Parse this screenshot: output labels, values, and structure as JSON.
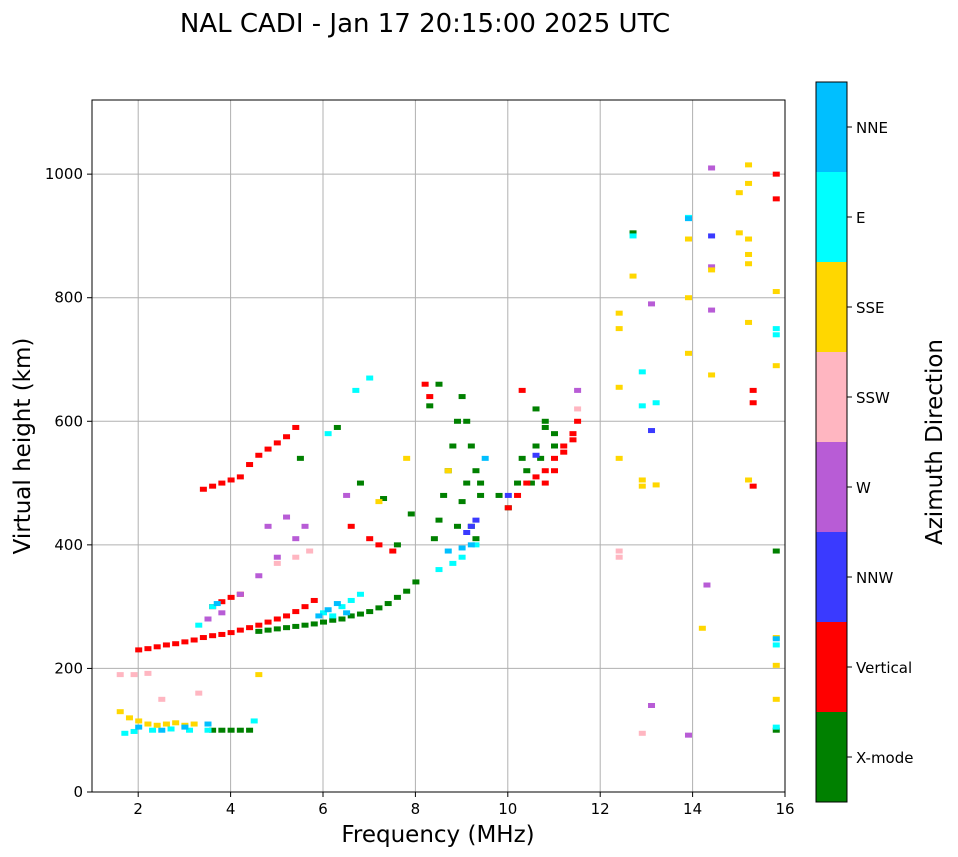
{
  "chart_data": {
    "type": "scatter",
    "title": "NAL CADI - Jan 17 20:15:00 2025 UTC",
    "xlabel": "Frequency (MHz)",
    "ylabel": "Virtual height (km)",
    "xlim": [
      1,
      16
    ],
    "ylim": [
      0,
      1120
    ],
    "xticks": [
      2,
      4,
      6,
      8,
      10,
      12,
      14,
      16
    ],
    "yticks": [
      0,
      200,
      400,
      600,
      800,
      1000
    ],
    "grid": true,
    "colorbar": {
      "label": "Azimuth Direction",
      "categories": [
        {
          "name": "X-mode",
          "color": "#008000"
        },
        {
          "name": "Vertical",
          "color": "#ff0000"
        },
        {
          "name": "NNW",
          "color": "#3a3aff"
        },
        {
          "name": "W",
          "color": "#b85cd6"
        },
        {
          "name": "SSW",
          "color": "#ffb6c1"
        },
        {
          "name": "SSE",
          "color": "#ffd700"
        },
        {
          "name": "E",
          "color": "#00ffff"
        },
        {
          "name": "NNE",
          "color": "#00bfff"
        }
      ]
    },
    "series": [
      {
        "name": "X-mode",
        "points": [
          [
            3.6,
            100
          ],
          [
            3.8,
            100
          ],
          [
            4.0,
            100
          ],
          [
            4.2,
            100
          ],
          [
            4.4,
            100
          ],
          [
            4.6,
            260
          ],
          [
            4.8,
            262
          ],
          [
            5.0,
            264
          ],
          [
            5.2,
            266
          ],
          [
            5.4,
            268
          ],
          [
            5.6,
            270
          ],
          [
            5.8,
            272
          ],
          [
            6.0,
            275
          ],
          [
            6.2,
            278
          ],
          [
            6.4,
            280
          ],
          [
            6.6,
            285
          ],
          [
            6.8,
            288
          ],
          [
            7.0,
            292
          ],
          [
            7.2,
            298
          ],
          [
            7.4,
            305
          ],
          [
            7.6,
            315
          ],
          [
            7.8,
            325
          ],
          [
            8.0,
            340
          ],
          [
            5.5,
            540
          ],
          [
            6.3,
            590
          ],
          [
            6.8,
            500
          ],
          [
            7.3,
            475
          ],
          [
            7.6,
            400
          ],
          [
            7.9,
            450
          ],
          [
            8.4,
            410
          ],
          [
            8.5,
            440
          ],
          [
            8.6,
            480
          ],
          [
            8.7,
            520
          ],
          [
            8.8,
            560
          ],
          [
            8.9,
            600
          ],
          [
            9.0,
            640
          ],
          [
            9.1,
            600
          ],
          [
            9.2,
            560
          ],
          [
            9.3,
            520
          ],
          [
            9.4,
            480
          ],
          [
            8.3,
            625
          ],
          [
            8.5,
            660
          ],
          [
            8.9,
            430
          ],
          [
            9.0,
            470
          ],
          [
            9.1,
            500
          ],
          [
            9.2,
            430
          ],
          [
            9.3,
            410
          ],
          [
            9.4,
            500
          ],
          [
            9.8,
            480
          ],
          [
            10.0,
            460
          ],
          [
            10.2,
            500
          ],
          [
            10.4,
            520
          ],
          [
            10.6,
            560
          ],
          [
            10.8,
            590
          ],
          [
            10.6,
            620
          ],
          [
            10.8,
            600
          ],
          [
            11.0,
            580
          ],
          [
            10.5,
            500
          ],
          [
            10.7,
            540
          ],
          [
            11.0,
            560
          ],
          [
            10.3,
            540
          ],
          [
            12.7,
            905
          ],
          [
            15.8,
            390
          ],
          [
            15.8,
            100
          ]
        ]
      },
      {
        "name": "Vertical",
        "points": [
          [
            2.0,
            230
          ],
          [
            2.2,
            232
          ],
          [
            2.4,
            235
          ],
          [
            2.6,
            238
          ],
          [
            2.8,
            240
          ],
          [
            3.0,
            243
          ],
          [
            3.2,
            246
          ],
          [
            3.4,
            250
          ],
          [
            3.6,
            253
          ],
          [
            3.8,
            255
          ],
          [
            4.0,
            258
          ],
          [
            4.2,
            262
          ],
          [
            4.4,
            266
          ],
          [
            4.6,
            270
          ],
          [
            4.8,
            275
          ],
          [
            5.0,
            280
          ],
          [
            5.2,
            285
          ],
          [
            5.4,
            292
          ],
          [
            5.6,
            300
          ],
          [
            5.8,
            310
          ],
          [
            3.4,
            490
          ],
          [
            3.6,
            495
          ],
          [
            3.8,
            500
          ],
          [
            4.0,
            505
          ],
          [
            4.2,
            510
          ],
          [
            4.4,
            530
          ],
          [
            4.6,
            545
          ],
          [
            4.8,
            555
          ],
          [
            5.0,
            565
          ],
          [
            5.2,
            575
          ],
          [
            5.4,
            590
          ],
          [
            3.6,
            300
          ],
          [
            3.8,
            308
          ],
          [
            4.0,
            315
          ],
          [
            4.2,
            320
          ],
          [
            6.6,
            430
          ],
          [
            7.0,
            410
          ],
          [
            7.2,
            400
          ],
          [
            7.5,
            390
          ],
          [
            8.2,
            660
          ],
          [
            8.3,
            640
          ],
          [
            10.0,
            460
          ],
          [
            10.2,
            480
          ],
          [
            10.4,
            500
          ],
          [
            10.6,
            510
          ],
          [
            10.8,
            520
          ],
          [
            11.0,
            540
          ],
          [
            11.2,
            560
          ],
          [
            11.4,
            580
          ],
          [
            10.8,
            500
          ],
          [
            11.0,
            520
          ],
          [
            11.2,
            550
          ],
          [
            11.4,
            570
          ],
          [
            11.5,
            600
          ],
          [
            10.3,
            650
          ],
          [
            15.8,
            1000
          ],
          [
            15.8,
            960
          ],
          [
            15.3,
            650
          ],
          [
            15.3,
            630
          ],
          [
            15.3,
            495
          ]
        ]
      },
      {
        "name": "NNW",
        "points": [
          [
            9.1,
            420
          ],
          [
            9.2,
            430
          ],
          [
            9.3,
            440
          ],
          [
            10.0,
            480
          ],
          [
            10.6,
            545
          ],
          [
            13.1,
            585
          ],
          [
            14.4,
            900
          ]
        ]
      },
      {
        "name": "W",
        "points": [
          [
            3.5,
            280
          ],
          [
            3.8,
            290
          ],
          [
            4.2,
            320
          ],
          [
            4.6,
            350
          ],
          [
            5.0,
            380
          ],
          [
            5.4,
            410
          ],
          [
            5.6,
            430
          ],
          [
            4.8,
            430
          ],
          [
            5.2,
            445
          ],
          [
            6.5,
            480
          ],
          [
            11.5,
            650
          ],
          [
            13.1,
            790
          ],
          [
            14.3,
            335
          ],
          [
            14.4,
            1010
          ],
          [
            14.4,
            850
          ],
          [
            14.4,
            780
          ],
          [
            13.1,
            140
          ],
          [
            13.9,
            92
          ]
        ]
      },
      {
        "name": "SSW",
        "points": [
          [
            1.6,
            190
          ],
          [
            1.9,
            190
          ],
          [
            2.2,
            192
          ],
          [
            2.5,
            150
          ],
          [
            3.3,
            160
          ],
          [
            5.0,
            370
          ],
          [
            5.4,
            380
          ],
          [
            5.7,
            390
          ],
          [
            11.5,
            620
          ],
          [
            12.4,
            390
          ],
          [
            12.4,
            380
          ],
          [
            12.9,
            95
          ]
        ]
      },
      {
        "name": "SSE",
        "points": [
          [
            1.6,
            130
          ],
          [
            1.8,
            120
          ],
          [
            2.0,
            115
          ],
          [
            2.2,
            110
          ],
          [
            2.4,
            108
          ],
          [
            2.6,
            110
          ],
          [
            2.8,
            112
          ],
          [
            3.0,
            108
          ],
          [
            3.2,
            110
          ],
          [
            4.6,
            190
          ],
          [
            7.2,
            470
          ],
          [
            7.8,
            540
          ],
          [
            8.7,
            520
          ],
          [
            12.4,
            775
          ],
          [
            12.4,
            750
          ],
          [
            12.4,
            655
          ],
          [
            12.4,
            540
          ],
          [
            12.7,
            835
          ],
          [
            12.9,
            505
          ],
          [
            12.9,
            495
          ],
          [
            13.2,
            497
          ],
          [
            13.9,
            800
          ],
          [
            13.9,
            710
          ],
          [
            13.9,
            895
          ],
          [
            14.4,
            845
          ],
          [
            14.4,
            675
          ],
          [
            14.2,
            265
          ],
          [
            15.2,
            1015
          ],
          [
            15.2,
            985
          ],
          [
            15.0,
            970
          ],
          [
            15.0,
            905
          ],
          [
            15.2,
            895
          ],
          [
            15.2,
            870
          ],
          [
            15.2,
            855
          ],
          [
            15.8,
            810
          ],
          [
            15.2,
            760
          ],
          [
            15.8,
            690
          ],
          [
            15.2,
            505
          ],
          [
            15.8,
            250
          ],
          [
            15.8,
            205
          ],
          [
            15.8,
            150
          ]
        ]
      },
      {
        "name": "E",
        "points": [
          [
            1.7,
            95
          ],
          [
            1.9,
            98
          ],
          [
            2.3,
            100
          ],
          [
            2.7,
            102
          ],
          [
            3.1,
            100
          ],
          [
            3.5,
            100
          ],
          [
            4.5,
            115
          ],
          [
            3.3,
            270
          ],
          [
            3.6,
            300
          ],
          [
            6.0,
            290
          ],
          [
            6.2,
            285
          ],
          [
            6.4,
            300
          ],
          [
            6.6,
            310
          ],
          [
            6.8,
            320
          ],
          [
            6.1,
            580
          ],
          [
            6.7,
            650
          ],
          [
            7.0,
            670
          ],
          [
            8.5,
            360
          ],
          [
            8.8,
            370
          ],
          [
            9.0,
            380
          ],
          [
            9.3,
            400
          ],
          [
            12.7,
            900
          ],
          [
            12.9,
            680
          ],
          [
            12.9,
            625
          ],
          [
            13.2,
            630
          ],
          [
            13.9,
            930
          ],
          [
            15.8,
            750
          ],
          [
            15.8,
            740
          ],
          [
            15.8,
            238
          ],
          [
            15.8,
            105
          ]
        ]
      },
      {
        "name": "NNE",
        "points": [
          [
            2.0,
            105
          ],
          [
            2.5,
            100
          ],
          [
            3.0,
            105
          ],
          [
            3.5,
            110
          ],
          [
            3.7,
            305
          ],
          [
            5.9,
            285
          ],
          [
            6.1,
            295
          ],
          [
            6.3,
            305
          ],
          [
            6.5,
            290
          ],
          [
            8.7,
            390
          ],
          [
            9.0,
            395
          ],
          [
            9.2,
            400
          ],
          [
            9.5,
            540
          ],
          [
            13.9,
            928
          ],
          [
            15.8,
            248
          ]
        ]
      }
    ]
  }
}
